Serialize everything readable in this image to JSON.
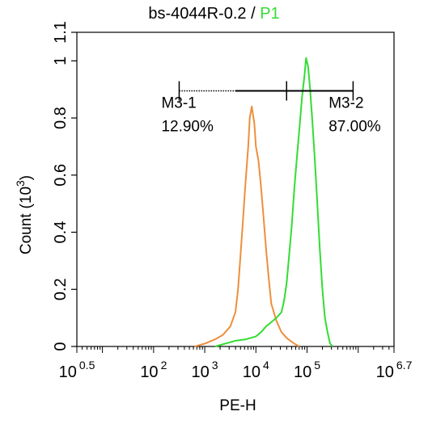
{
  "chart_data": {
    "type": "line",
    "title_main": "bs-4044R-0.2",
    "title_separator": " / ",
    "title_gate": "P1",
    "xlabel": "PE-H",
    "ylabel": "Count",
    "ylabel_unit_base": "(10",
    "ylabel_unit_exp": "3",
    "ylabel_unit_close": ")",
    "x_scale": "log10",
    "xlim": [
      0.5,
      6.7
    ],
    "ylim": [
      0,
      1.1
    ],
    "x_ticks": [
      {
        "base": "10",
        "exp": "0.5",
        "value": 0.5
      },
      {
        "base": "10",
        "exp": "2",
        "value": 2
      },
      {
        "base": "10",
        "exp": "3",
        "value": 3
      },
      {
        "base": "10",
        "exp": "4",
        "value": 4
      },
      {
        "base": "10",
        "exp": "5",
        "value": 5
      },
      {
        "base": "10",
        "exp": "6.7",
        "value": 6.7
      }
    ],
    "y_ticks": [
      {
        "label": "0",
        "value": 0
      },
      {
        "label": "0.2",
        "value": 0.2
      },
      {
        "label": "0.4",
        "value": 0.4
      },
      {
        "label": "0.6",
        "value": 0.6
      },
      {
        "label": "0.8",
        "value": 0.8
      },
      {
        "label": "1",
        "value": 1.0
      },
      {
        "label": "1.1",
        "value": 1.1
      }
    ],
    "series": [
      {
        "color": "#ee8f3c",
        "points": [
          [
            2.8,
            0
          ],
          [
            3.0,
            0.01
          ],
          [
            3.2,
            0.025
          ],
          [
            3.35,
            0.04
          ],
          [
            3.5,
            0.07
          ],
          [
            3.6,
            0.12
          ],
          [
            3.65,
            0.2
          ],
          [
            3.7,
            0.32
          ],
          [
            3.75,
            0.45
          ],
          [
            3.8,
            0.58
          ],
          [
            3.85,
            0.7
          ],
          [
            3.88,
            0.8
          ],
          [
            3.92,
            0.84
          ],
          [
            3.97,
            0.78
          ],
          [
            4.0,
            0.7
          ],
          [
            4.05,
            0.65
          ],
          [
            4.1,
            0.56
          ],
          [
            4.15,
            0.45
          ],
          [
            4.2,
            0.34
          ],
          [
            4.25,
            0.24
          ],
          [
            4.3,
            0.15
          ],
          [
            4.4,
            0.09
          ],
          [
            4.5,
            0.05
          ],
          [
            4.6,
            0.03
          ],
          [
            4.75,
            0.01
          ],
          [
            4.85,
            0
          ]
        ]
      },
      {
        "color": "#33dd33",
        "points": [
          [
            3.2,
            0
          ],
          [
            3.4,
            0.01
          ],
          [
            3.6,
            0.02
          ],
          [
            3.8,
            0.025
          ],
          [
            4.0,
            0.035
          ],
          [
            4.1,
            0.05
          ],
          [
            4.2,
            0.07
          ],
          [
            4.3,
            0.085
          ],
          [
            4.4,
            0.1
          ],
          [
            4.5,
            0.12
          ],
          [
            4.55,
            0.16
          ],
          [
            4.6,
            0.22
          ],
          [
            4.65,
            0.32
          ],
          [
            4.7,
            0.42
          ],
          [
            4.75,
            0.55
          ],
          [
            4.8,
            0.66
          ],
          [
            4.85,
            0.76
          ],
          [
            4.9,
            0.87
          ],
          [
            4.95,
            0.95
          ],
          [
            4.98,
            1.01
          ],
          [
            5.02,
            0.98
          ],
          [
            5.06,
            0.9
          ],
          [
            5.1,
            0.8
          ],
          [
            5.15,
            0.66
          ],
          [
            5.2,
            0.5
          ],
          [
            5.25,
            0.34
          ],
          [
            5.3,
            0.2
          ],
          [
            5.35,
            0.1
          ],
          [
            5.4,
            0.05
          ],
          [
            5.45,
            0.01
          ],
          [
            5.5,
            0
          ]
        ]
      }
    ],
    "gates": [
      {
        "name": "M3-1",
        "percent": "12.90%",
        "x_start": 2.5,
        "x_end": 4.6
      },
      {
        "name": "M3-2",
        "percent": "87.00%",
        "x_start": 4.6,
        "x_end": 5.9
      }
    ],
    "gate_y": 0.895,
    "gate_dotted_until": 3.6
  }
}
